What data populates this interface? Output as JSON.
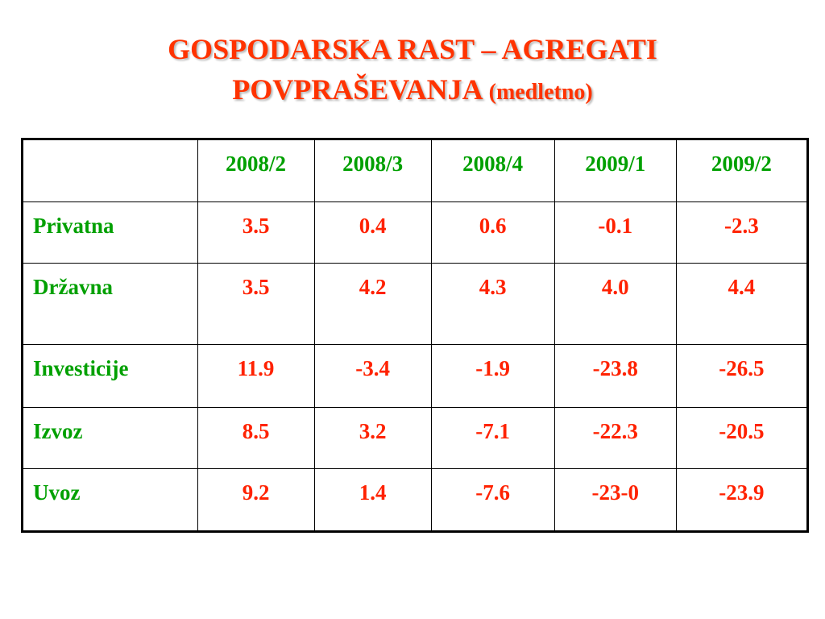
{
  "title": {
    "line1": "GOSPODARSKA RAST – AGREGATI",
    "line2": "POVPRAŠEVANJA",
    "suffix": "(medletno)"
  },
  "colors": {
    "title": "#ff3300",
    "labels": "#00a000",
    "values": "#ff2200"
  },
  "table": {
    "headers": [
      "",
      "2008/2",
      "2008/3",
      "2008/4",
      "2009/1",
      "2009/2"
    ],
    "rows": [
      {
        "label": "Privatna",
        "values": [
          "3.5",
          "0.4",
          "0.6",
          "-0.1",
          "-2.3"
        ]
      },
      {
        "label": "Državna",
        "values": [
          "3.5",
          "4.2",
          "4.3",
          "4.0",
          "4.4"
        ]
      },
      {
        "label": "Investicije",
        "values": [
          "11.9",
          "-3.4",
          "-1.9",
          "-23.8",
          "-26.5"
        ]
      },
      {
        "label": "Izvoz",
        "values": [
          "8.5",
          "3.2",
          "-7.1",
          "-22.3",
          "-20.5"
        ]
      },
      {
        "label": "Uvoz",
        "values": [
          "9.2",
          "1.4",
          "-7.6",
          "-23-0",
          "-23.9"
        ]
      }
    ]
  }
}
